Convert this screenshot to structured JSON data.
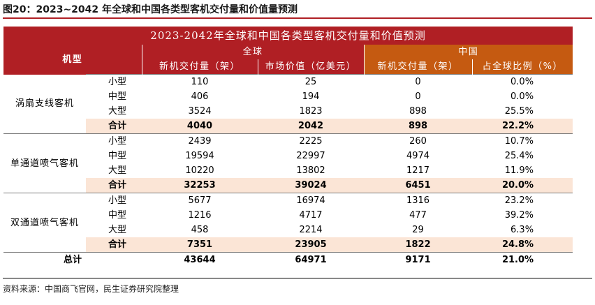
{
  "figure_title": "图20：2023~2042 年全球和中国各类型客机交付量和价值量预测",
  "source": "资料来源：中国商飞官网，民生证券研究院整理",
  "table": {
    "banner": "2023-2042年全球和中国各类型客机交付量和价值预测",
    "header": {
      "type": "机型",
      "global": "全球",
      "china": "中国",
      "col_global_deliveries": "新机交付量（架）",
      "col_global_value": "市场价值（亿美元）",
      "col_china_deliveries": "新机交付量（架）",
      "col_china_share": "占全球比例（%）"
    },
    "groups": [
      {
        "category": "涡扇支线客机",
        "rows": [
          {
            "size": "小型",
            "global_deliveries": "110",
            "global_value": "25",
            "china_deliveries": "0",
            "china_share": "0.0%"
          },
          {
            "size": "中型",
            "global_deliveries": "406",
            "global_value": "194",
            "china_deliveries": "0",
            "china_share": "0.0%"
          },
          {
            "size": "大型",
            "global_deliveries": "3524",
            "global_value": "1823",
            "china_deliveries": "898",
            "china_share": "25.5%"
          }
        ],
        "subtotal": {
          "label": "合计",
          "global_deliveries": "4040",
          "global_value": "2042",
          "china_deliveries": "898",
          "china_share": "22.2%"
        }
      },
      {
        "category": "单通道喷气客机",
        "rows": [
          {
            "size": "小型",
            "global_deliveries": "2439",
            "global_value": "2225",
            "china_deliveries": "260",
            "china_share": "10.7%"
          },
          {
            "size": "中型",
            "global_deliveries": "19594",
            "global_value": "22997",
            "china_deliveries": "4974",
            "china_share": "25.4%"
          },
          {
            "size": "大型",
            "global_deliveries": "10220",
            "global_value": "13802",
            "china_deliveries": "1217",
            "china_share": "11.9%"
          }
        ],
        "subtotal": {
          "label": "合计",
          "global_deliveries": "32253",
          "global_value": "39024",
          "china_deliveries": "6451",
          "china_share": "20.0%"
        }
      },
      {
        "category": "双通道喷气客机",
        "rows": [
          {
            "size": "小型",
            "global_deliveries": "5677",
            "global_value": "16974",
            "china_deliveries": "1316",
            "china_share": "23.2%"
          },
          {
            "size": "中型",
            "global_deliveries": "1216",
            "global_value": "4717",
            "china_deliveries": "477",
            "china_share": "39.2%"
          },
          {
            "size": "大型",
            "global_deliveries": "458",
            "global_value": "2214",
            "china_deliveries": "29",
            "china_share": "6.3%"
          }
        ],
        "subtotal": {
          "label": "合计",
          "global_deliveries": "7351",
          "global_value": "23905",
          "china_deliveries": "1822",
          "china_share": "24.8%"
        }
      }
    ],
    "total": {
      "label": "总计",
      "global_deliveries": "43644",
      "global_value": "64971",
      "china_deliveries": "9171",
      "china_share": "21.0%"
    }
  },
  "colors": {
    "banner_red": "#b01f24",
    "header_orange": "#c55a11",
    "subtotal_fill": "#fbe5d6"
  }
}
